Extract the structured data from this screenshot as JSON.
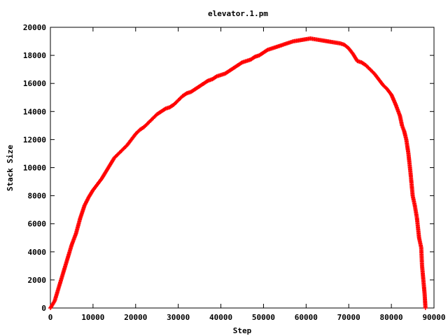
{
  "chart_data": {
    "type": "scatter",
    "title": "elevator.1.pm",
    "xlabel": "Step",
    "ylabel": "Stack Size",
    "xlim": [
      0,
      90000
    ],
    "ylim": [
      0,
      20000
    ],
    "xticks": [
      0,
      10000,
      20000,
      30000,
      40000,
      50000,
      60000,
      70000,
      80000,
      90000
    ],
    "yticks": [
      0,
      2000,
      4000,
      6000,
      8000,
      10000,
      12000,
      14000,
      16000,
      18000,
      20000
    ],
    "grid": false,
    "legend": "none",
    "marker": "plus",
    "series": [
      {
        "color": "#ff0000",
        "points": [
          [
            0,
            0
          ],
          [
            1000,
            500
          ],
          [
            2000,
            1500
          ],
          [
            3000,
            2500
          ],
          [
            4000,
            3500
          ],
          [
            5000,
            4500
          ],
          [
            6000,
            5300
          ],
          [
            7000,
            6400
          ],
          [
            8000,
            7300
          ],
          [
            9000,
            7900
          ],
          [
            10000,
            8400
          ],
          [
            11000,
            8800
          ],
          [
            12000,
            9200
          ],
          [
            13000,
            9700
          ],
          [
            14000,
            10200
          ],
          [
            15000,
            10700
          ],
          [
            16000,
            11000
          ],
          [
            17000,
            11300
          ],
          [
            18000,
            11600
          ],
          [
            19000,
            12000
          ],
          [
            20000,
            12400
          ],
          [
            21000,
            12700
          ],
          [
            22000,
            12900
          ],
          [
            23000,
            13200
          ],
          [
            24000,
            13500
          ],
          [
            25000,
            13800
          ],
          [
            26000,
            14000
          ],
          [
            27000,
            14200
          ],
          [
            28000,
            14300
          ],
          [
            29000,
            14500
          ],
          [
            30000,
            14800
          ],
          [
            31000,
            15100
          ],
          [
            32000,
            15300
          ],
          [
            33000,
            15400
          ],
          [
            34000,
            15600
          ],
          [
            35000,
            15800
          ],
          [
            36000,
            16000
          ],
          [
            37000,
            16200
          ],
          [
            38000,
            16300
          ],
          [
            39000,
            16500
          ],
          [
            40000,
            16600
          ],
          [
            41000,
            16700
          ],
          [
            42000,
            16900
          ],
          [
            43000,
            17100
          ],
          [
            44000,
            17300
          ],
          [
            45000,
            17500
          ],
          [
            46000,
            17600
          ],
          [
            47000,
            17700
          ],
          [
            48000,
            17900
          ],
          [
            49000,
            18000
          ],
          [
            50000,
            18200
          ],
          [
            51000,
            18400
          ],
          [
            52000,
            18500
          ],
          [
            53000,
            18600
          ],
          [
            54000,
            18700
          ],
          [
            55000,
            18800
          ],
          [
            56000,
            18900
          ],
          [
            57000,
            19000
          ],
          [
            58000,
            19050
          ],
          [
            59000,
            19100
          ],
          [
            60000,
            19150
          ],
          [
            61000,
            19200
          ],
          [
            62000,
            19150
          ],
          [
            63000,
            19100
          ],
          [
            64000,
            19050
          ],
          [
            65000,
            19000
          ],
          [
            66000,
            18950
          ],
          [
            67000,
            18900
          ],
          [
            68000,
            18850
          ],
          [
            69000,
            18750
          ],
          [
            70000,
            18500
          ],
          [
            71000,
            18100
          ],
          [
            72000,
            17600
          ],
          [
            73000,
            17500
          ],
          [
            74000,
            17300
          ],
          [
            75000,
            17000
          ],
          [
            76000,
            16700
          ],
          [
            77000,
            16300
          ],
          [
            78000,
            15900
          ],
          [
            79000,
            15600
          ],
          [
            80000,
            15200
          ],
          [
            81000,
            14500
          ],
          [
            82000,
            13700
          ],
          [
            82500,
            13000
          ],
          [
            83000,
            12600
          ],
          [
            83500,
            12000
          ],
          [
            84000,
            11000
          ],
          [
            84500,
            9600
          ],
          [
            85000,
            8000
          ],
          [
            85500,
            7300
          ],
          [
            86000,
            6400
          ],
          [
            86500,
            5000
          ],
          [
            87000,
            4300
          ],
          [
            87200,
            3000
          ],
          [
            87500,
            2000
          ],
          [
            87800,
            1000
          ],
          [
            88000,
            0
          ]
        ]
      }
    ]
  }
}
